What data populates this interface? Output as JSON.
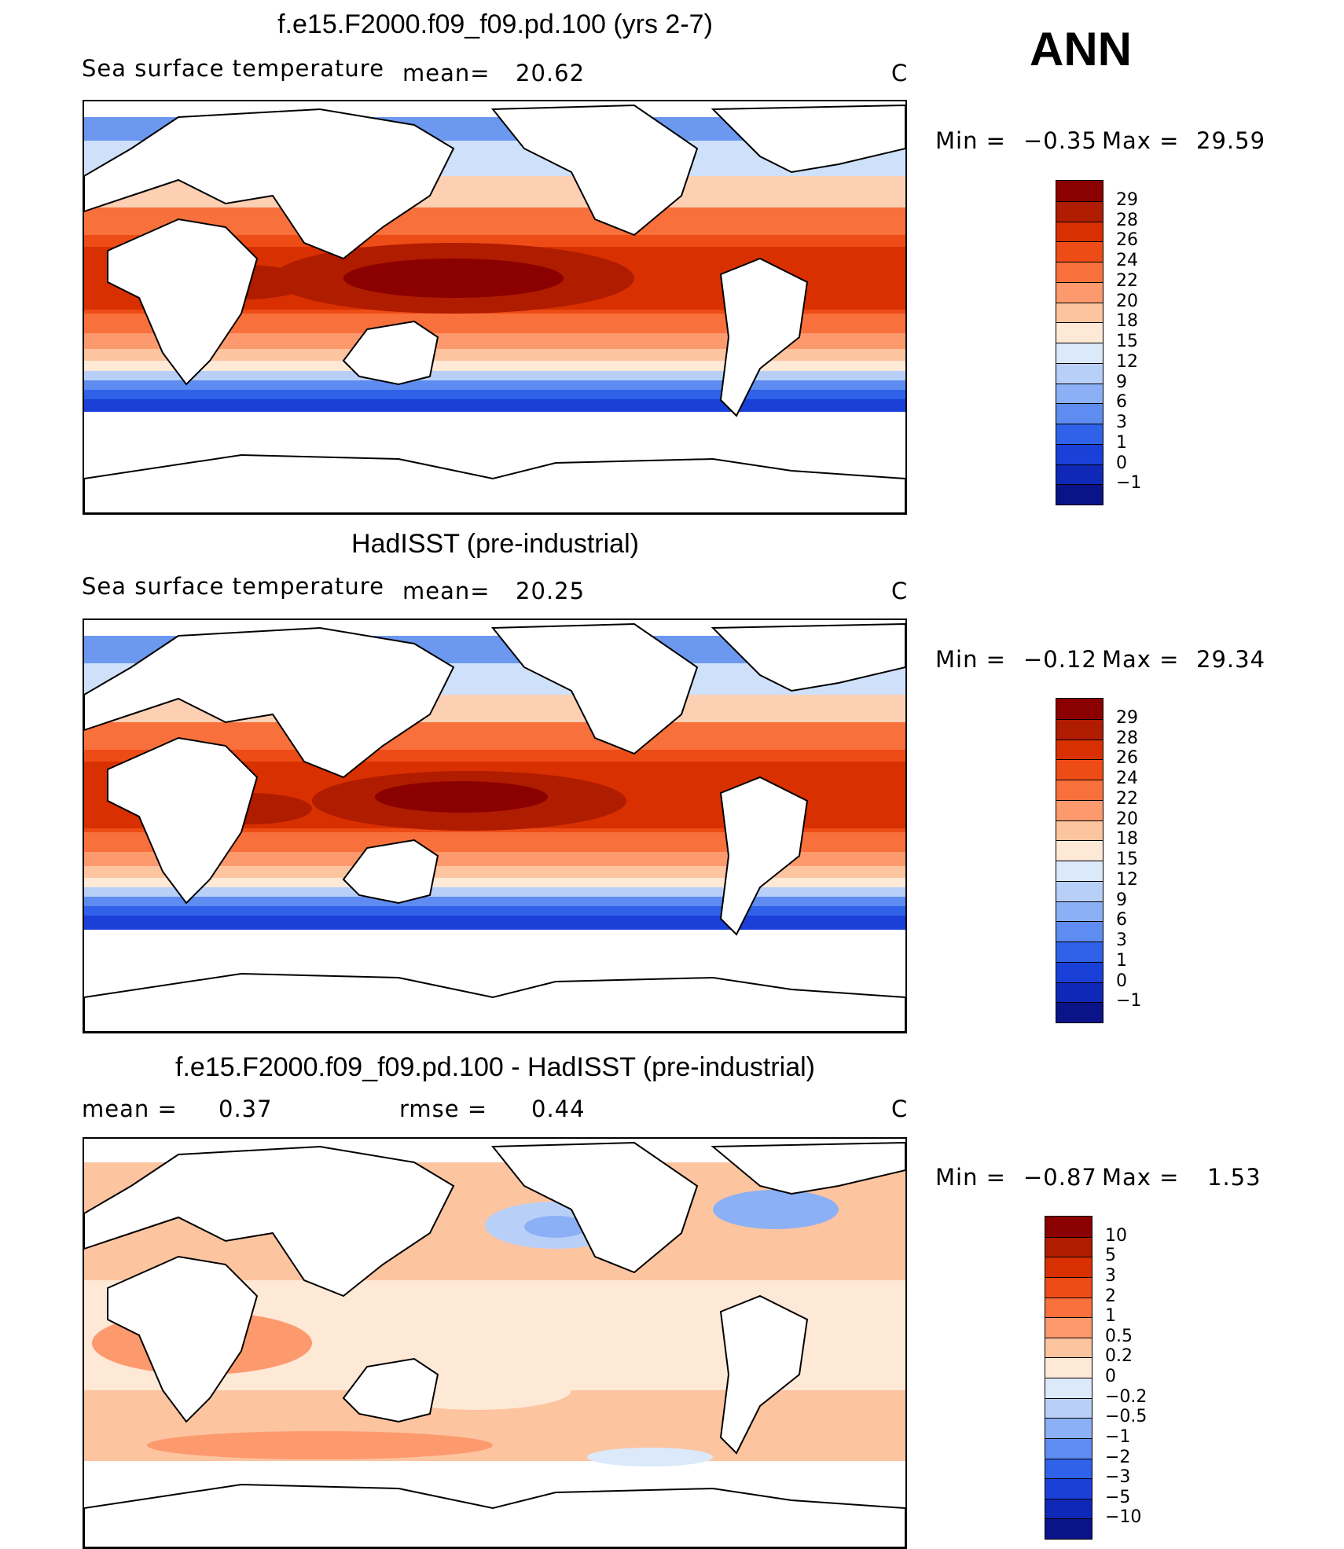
{
  "season": "ANN",
  "panels": [
    {
      "title": "f.e15.F2000.f09_f09.pd.100 (yrs 2-7)",
      "variable": "Sea surface temperature",
      "mean_label": "mean=",
      "mean_value": "20.62",
      "units": "C",
      "minmax": {
        "min_label": "Min =",
        "min": "−0.35",
        "max_label": "Max =",
        "max": "29.59"
      }
    },
    {
      "title": "HadISST (pre-industrial)",
      "variable": "Sea surface temperature",
      "mean_label": "mean=",
      "mean_value": "20.25",
      "units": "C",
      "minmax": {
        "min_label": "Min =",
        "min": "−0.12",
        "max_label": "Max =",
        "max": "29.34"
      }
    },
    {
      "title": "f.e15.F2000.f09_f09.pd.100 - HadISST (pre-industrial)",
      "mean_label": "mean =",
      "mean_value": "0.37",
      "rmse_label": "rmse =",
      "rmse_value": "0.44",
      "units": "C",
      "minmax": {
        "min_label": "Min =",
        "min": "−0.87",
        "max_label": "Max =",
        "max": "1.53"
      }
    }
  ],
  "colorbars": {
    "sst": {
      "labels": [
        "29",
        "28",
        "26",
        "24",
        "22",
        "20",
        "18",
        "15",
        "12",
        "9",
        "6",
        "3",
        "1",
        "0",
        "−1"
      ],
      "colors": [
        "#8b0000",
        "#b01c00",
        "#d83000",
        "#ee4c16",
        "#f8703c",
        "#fc9a6e",
        "#fdc4a0",
        "#fee8d6",
        "#dbe9fb",
        "#b8d0f8",
        "#8cb0f5",
        "#5e8cf0",
        "#2f62e8",
        "#1a40d8",
        "#1028b8",
        "#0a1488"
      ]
    },
    "diff": {
      "labels": [
        "10",
        "5",
        "3",
        "2",
        "1",
        "0.5",
        "0.2",
        "0",
        "−0.2",
        "−0.5",
        "−1",
        "−2",
        "−3",
        "−5",
        "−10"
      ],
      "colors": [
        "#8b0000",
        "#b01c00",
        "#d83000",
        "#ee4c16",
        "#f8703c",
        "#fc9a6e",
        "#fdc4a0",
        "#fee8d6",
        "#dbe9fb",
        "#b8d0f8",
        "#8cb0f5",
        "#5e8cf0",
        "#2f62e8",
        "#1a40d8",
        "#1028b8",
        "#0a1488"
      ]
    }
  }
}
